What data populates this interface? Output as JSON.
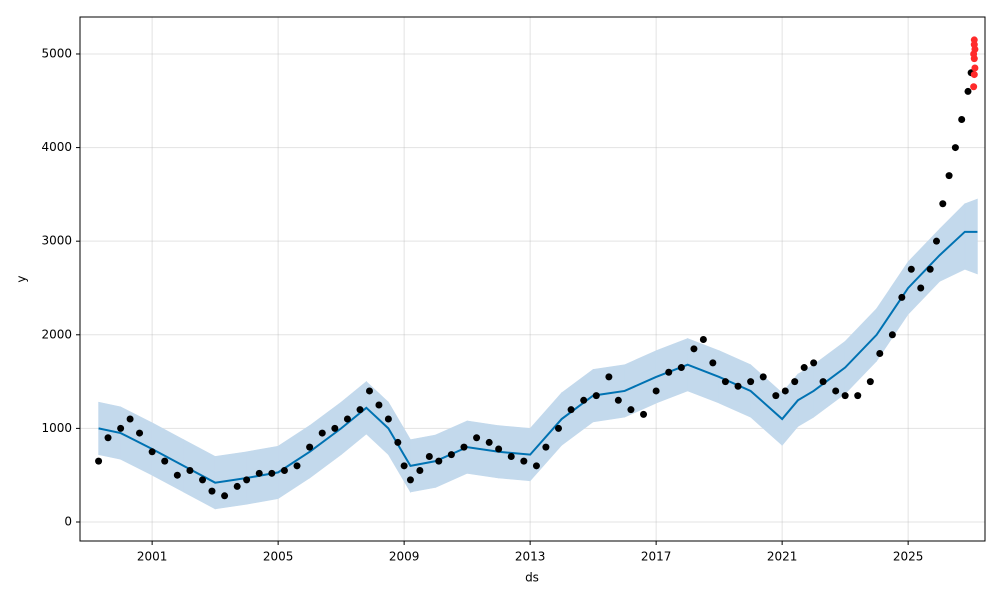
{
  "chart_data": {
    "type": "scatter",
    "xlabel": "ds",
    "ylabel": "y",
    "xlim": [
      1998.71,
      2027.44
    ],
    "ylim": [
      -203,
      5395
    ],
    "xticks": [
      2001,
      2005,
      2009,
      2013,
      2017,
      2021,
      2025
    ],
    "yticks": [
      0,
      1000,
      2000,
      3000,
      4000,
      5000
    ],
    "grid": true,
    "series": [
      {
        "type": "band",
        "color": "#c3d9ec",
        "x": [
          1999.3,
          2000,
          2001,
          2002,
          2003,
          2004,
          2005,
          2006,
          2007,
          2007.8,
          2008.5,
          2009.2,
          2010,
          2011,
          2012,
          2013,
          2014,
          2015,
          2016,
          2017,
          2018,
          2019,
          2020,
          2021,
          2021.5,
          2022,
          2023,
          2024,
          2025,
          2026,
          2026.8,
          2027.2
        ],
        "upper": [
          1280,
          1230,
          1060,
          880,
          700,
          750,
          810,
          1030,
          1280,
          1500,
          1280,
          880,
          930,
          1080,
          1030,
          1000,
          1380,
          1630,
          1680,
          1830,
          1960,
          1830,
          1680,
          1380,
          1580,
          1680,
          1930,
          2280,
          2780,
          3130,
          3400,
          3450
        ],
        "lower": [
          720,
          670,
          500,
          320,
          140,
          190,
          250,
          470,
          720,
          940,
          720,
          320,
          370,
          520,
          470,
          440,
          820,
          1070,
          1120,
          1270,
          1400,
          1270,
          1120,
          820,
          1020,
          1120,
          1370,
          1720,
          2220,
          2570,
          2700,
          2650
        ]
      },
      {
        "type": "line",
        "color": "#0072b2",
        "x": [
          1999.3,
          2000,
          2001,
          2002,
          2003,
          2004,
          2005,
          2006,
          2007,
          2007.8,
          2008.5,
          2009.2,
          2010,
          2011,
          2012,
          2013,
          2014,
          2015,
          2016,
          2017,
          2018,
          2019,
          2020,
          2021,
          2021.5,
          2022,
          2023,
          2024,
          2025,
          2026,
          2026.8,
          2027.2
        ],
        "values": [
          1000,
          950,
          780,
          600,
          420,
          470,
          530,
          750,
          1000,
          1220,
          1000,
          600,
          650,
          800,
          750,
          720,
          1100,
          1350,
          1400,
          1550,
          1680,
          1550,
          1400,
          1100,
          1300,
          1400,
          1650,
          2000,
          2500,
          2850,
          3100,
          3100
        ]
      },
      {
        "type": "scatter",
        "color": "#000000",
        "x": [
          1999.3,
          1999.6,
          2000.0,
          2000.3,
          2000.6,
          2001.0,
          2001.4,
          2001.8,
          2002.2,
          2002.6,
          2002.9,
          2003.3,
          2003.7,
          2004.0,
          2004.4,
          2004.8,
          2005.2,
          2005.6,
          2006.0,
          2006.4,
          2006.8,
          2007.2,
          2007.6,
          2007.9,
          2008.2,
          2008.5,
          2008.8,
          2009.0,
          2009.2,
          2009.5,
          2009.8,
          2010.1,
          2010.5,
          2010.9,
          2011.3,
          2011.7,
          2012.0,
          2012.4,
          2012.8,
          2013.2,
          2013.5,
          2013.9,
          2014.3,
          2014.7,
          2015.1,
          2015.5,
          2015.8,
          2016.2,
          2016.6,
          2017.0,
          2017.4,
          2017.8,
          2018.2,
          2018.5,
          2018.8,
          2019.2,
          2019.6,
          2020.0,
          2020.4,
          2020.8,
          2021.1,
          2021.4,
          2021.7,
          2022.0,
          2022.3,
          2022.7,
          2023.0,
          2023.4,
          2023.8,
          2024.1,
          2024.5,
          2024.8,
          2025.1,
          2025.4,
          2025.7,
          2025.9,
          2026.1,
          2026.3,
          2026.5,
          2026.7,
          2026.9,
          2027.0
        ],
        "values": [
          650,
          900,
          1000,
          1100,
          950,
          750,
          650,
          500,
          550,
          450,
          330,
          280,
          380,
          450,
          520,
          520,
          550,
          600,
          800,
          950,
          1000,
          1100,
          1200,
          1400,
          1250,
          1100,
          850,
          600,
          450,
          550,
          700,
          650,
          720,
          800,
          900,
          850,
          780,
          700,
          650,
          600,
          800,
          1000,
          1200,
          1300,
          1350,
          1550,
          1300,
          1200,
          1150,
          1400,
          1600,
          1650,
          1850,
          1950,
          1700,
          1500,
          1450,
          1500,
          1550,
          1350,
          1400,
          1500,
          1650,
          1700,
          1500,
          1400,
          1350,
          1350,
          1500,
          1800,
          2000,
          2400,
          2700,
          2500,
          2700,
          3000,
          3400,
          3700,
          4000,
          4300,
          4600,
          4800
        ]
      },
      {
        "type": "scatter",
        "color": "#ff2a2a",
        "x": [
          2027.08,
          2027.1,
          2027.12,
          2027.1,
          2027.08,
          2027.12,
          2027.1,
          2027.1
        ],
        "values": [
          4650,
          4780,
          4850,
          4950,
          5000,
          5050,
          5100,
          5150
        ]
      }
    ]
  }
}
